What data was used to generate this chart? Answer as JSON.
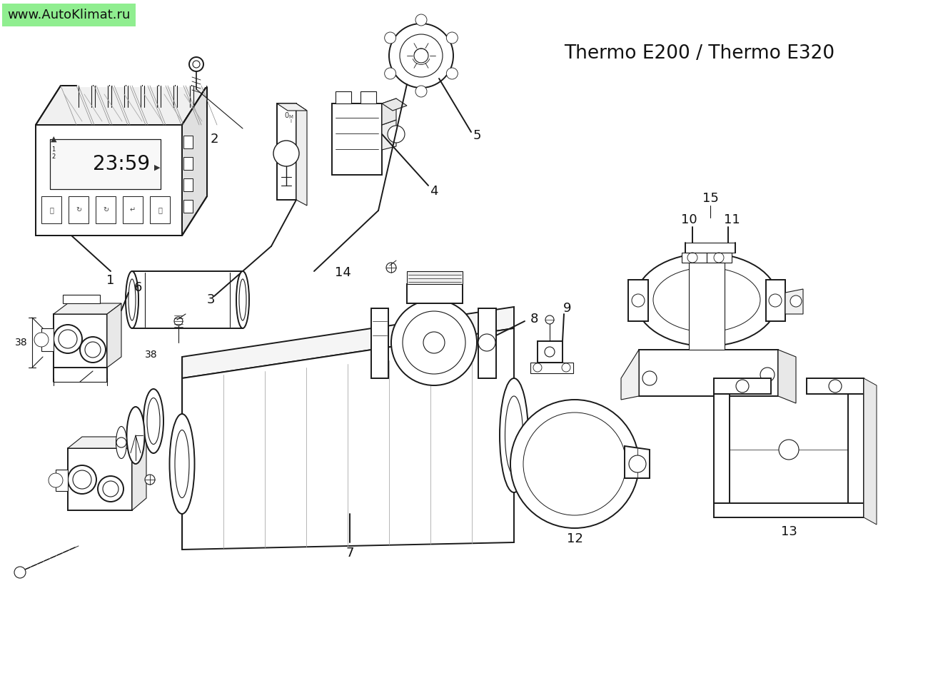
{
  "bg_color": "#ffffff",
  "title": "Thermo E200 / Thermo E320",
  "watermark_text": "www.AutoKlimat.ru",
  "watermark_bg": "#90ee90",
  "line_color": "#1a1a1a",
  "line_width": 1.4,
  "thin_lw": 0.7,
  "label_fontsize": 13,
  "label_color": "#111111",
  "title_fontsize": 19
}
